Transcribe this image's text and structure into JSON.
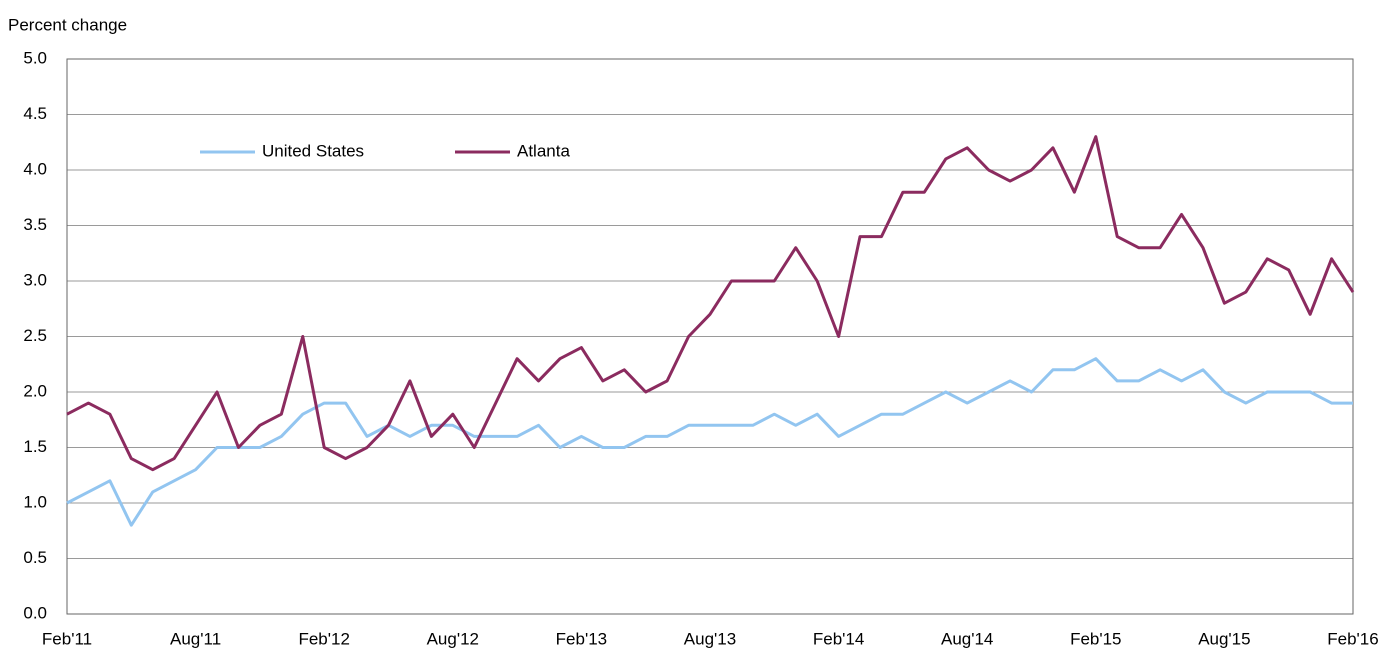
{
  "chart_data": {
    "type": "line",
    "ylabel": "Percent change",
    "categories": [
      "Feb'11",
      null,
      null,
      null,
      null,
      null,
      "Aug'11",
      null,
      null,
      null,
      null,
      null,
      "Feb'12",
      null,
      null,
      null,
      null,
      null,
      "Aug'12",
      null,
      null,
      null,
      null,
      null,
      "Feb'13",
      null,
      null,
      null,
      null,
      null,
      "Aug'13",
      null,
      null,
      null,
      null,
      null,
      "Feb'14",
      null,
      null,
      null,
      null,
      null,
      "Aug'14",
      null,
      null,
      null,
      null,
      null,
      "Feb'15",
      null,
      null,
      null,
      null,
      null,
      "Aug'15",
      null,
      null,
      null,
      null,
      null,
      "Feb'16"
    ],
    "series": [
      {
        "name": "United States",
        "color": "#92c5f0",
        "values": [
          1.0,
          1.1,
          1.2,
          0.8,
          1.1,
          1.2,
          1.3,
          1.5,
          1.5,
          1.5,
          1.6,
          1.8,
          1.9,
          1.9,
          1.6,
          1.7,
          1.6,
          1.7,
          1.7,
          1.6,
          1.6,
          1.6,
          1.7,
          1.5,
          1.6,
          1.5,
          1.5,
          1.6,
          1.6,
          1.7,
          1.7,
          1.7,
          1.7,
          1.8,
          1.7,
          1.8,
          1.6,
          1.7,
          1.8,
          1.8,
          1.9,
          2.0,
          1.9,
          2.0,
          2.1,
          2.0,
          2.2,
          2.2,
          2.3,
          2.1,
          2.1,
          2.2,
          2.1,
          2.2,
          2.0,
          1.9,
          2.0,
          2.0,
          2.0,
          1.9,
          1.9
        ]
      },
      {
        "name": "Atlanta",
        "color": "#8b2b5f",
        "values": [
          1.8,
          1.9,
          1.8,
          1.4,
          1.3,
          1.4,
          1.7,
          2.0,
          1.5,
          1.7,
          1.8,
          2.5,
          1.5,
          1.4,
          1.5,
          1.7,
          2.1,
          1.6,
          1.8,
          1.5,
          1.9,
          2.3,
          2.1,
          2.3,
          2.4,
          2.1,
          2.2,
          2.0,
          2.1,
          2.5,
          2.7,
          3.0,
          3.0,
          3.0,
          3.3,
          3.0,
          2.5,
          3.4,
          3.4,
          3.8,
          3.8,
          4.1,
          4.2,
          4.0,
          3.9,
          4.0,
          4.2,
          3.8,
          4.3,
          3.4,
          3.3,
          3.3,
          3.6,
          3.3,
          2.8,
          2.9,
          3.2,
          3.1,
          2.7,
          3.2,
          2.9
        ]
      }
    ],
    "ylim": [
      0,
      5
    ],
    "yticks": [
      {
        "value": 0,
        "label": "0.0"
      },
      0.5,
      {
        "value": 1,
        "label": "1.0"
      },
      1.5,
      {
        "value": 2,
        "label": "2.0"
      },
      2.5,
      {
        "value": 3,
        "label": "3.0"
      },
      3.5,
      {
        "value": 4,
        "label": "4.0"
      },
      4.5,
      {
        "value": 5,
        "label": "5.0"
      }
    ],
    "grid": true,
    "legend": "upper left"
  }
}
